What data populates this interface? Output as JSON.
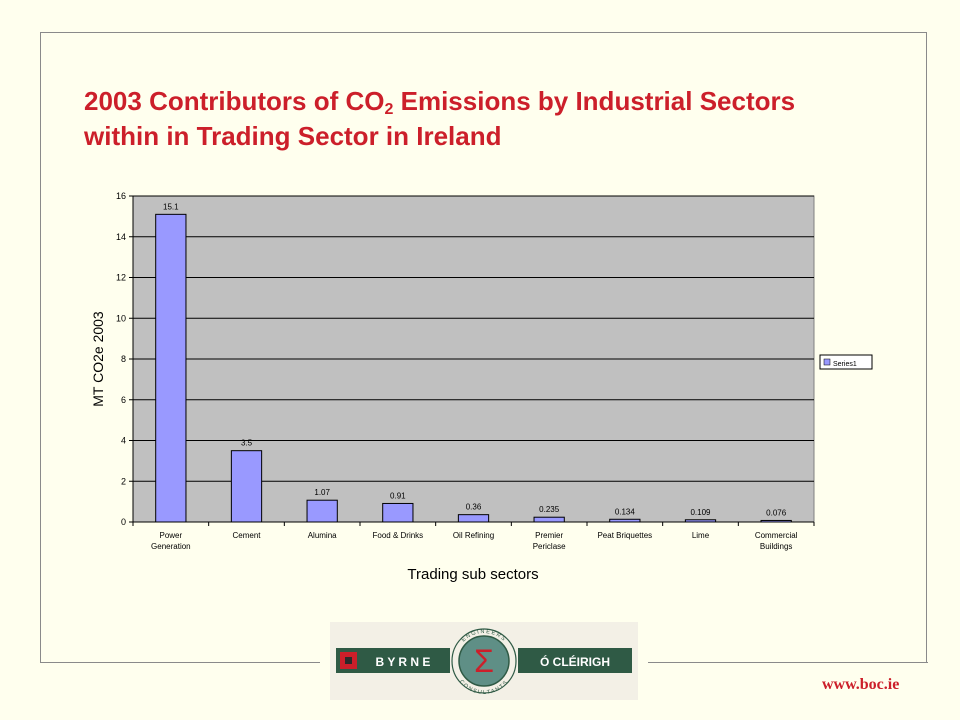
{
  "slide": {
    "title_part1": "2003 Contributors of CO",
    "title_sub": "2",
    "title_part2": " Emissions by Industrial Sectors within in Trading Sector in Ireland",
    "url": "www.boc.ie"
  },
  "logo": {
    "left_text": "B Y R N E",
    "right_text": "Ó CLÉIRIGH",
    "top_arc": "ENGINEERS",
    "bottom_arc": "CONSULTANTS",
    "symbol": "Σ"
  },
  "colors": {
    "title": "#cc1f2a",
    "bar": "#9999ff",
    "plot_bg": "#c0c0c0",
    "logo_green": "#2f5a45",
    "logo_red": "#cc1f2a"
  },
  "chart_data": {
    "type": "bar",
    "categories": [
      [
        "Power",
        "Generation"
      ],
      [
        "Cement"
      ],
      [
        "Alumina"
      ],
      [
        "Food & Drinks"
      ],
      [
        "Oil Refining"
      ],
      [
        "Premier",
        "Periclase"
      ],
      [
        "Peat Briquettes"
      ],
      [
        "Lime"
      ],
      [
        "Commercial",
        "Buildings"
      ]
    ],
    "series": [
      {
        "name": "Series1",
        "values": [
          15.1,
          3.5,
          1.07,
          0.91,
          0.36,
          0.235,
          0.134,
          0.109,
          0.076
        ],
        "labels": [
          "15.1",
          "3.5",
          "1.07",
          "0.91",
          "0.36",
          "0.235",
          "0.134",
          "0.109",
          "0.076"
        ]
      }
    ],
    "xlabel": "Trading sub sectors",
    "ylabel": "MT CO2e 2003",
    "ylim": [
      0,
      16
    ],
    "yticks": [
      0,
      2,
      4,
      6,
      8,
      10,
      12,
      14,
      16
    ],
    "grid": true,
    "legend": "right"
  }
}
